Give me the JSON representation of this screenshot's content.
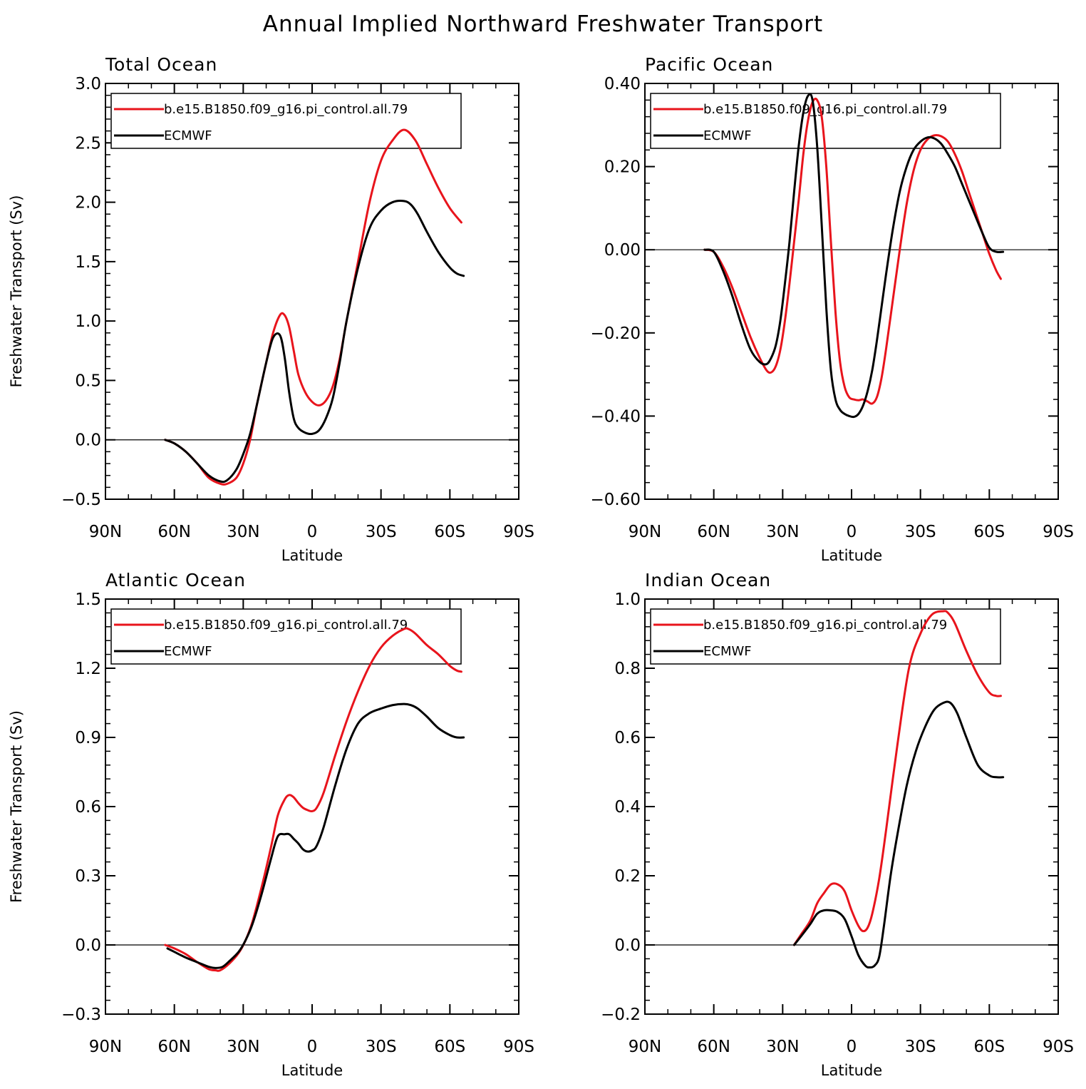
{
  "figure_title": "Annual Implied Northward Freshwater Transport",
  "colors": {
    "model": "#e8141c",
    "obs": "#000000"
  },
  "chart_data": [
    {
      "type": "line",
      "title": "Total Ocean",
      "xlabel": "Latitude",
      "ylabel": "Freshwater Transport (Sv)",
      "xlim": [
        90,
        -90
      ],
      "ylim": [
        -0.5,
        3.0
      ],
      "xticks": [
        90,
        60,
        30,
        0,
        -30,
        -60,
        -90
      ],
      "xtick_labels": [
        "90N",
        "60N",
        "30N",
        "0",
        "30S",
        "60S",
        "90S"
      ],
      "yticks": [
        -0.5,
        0.0,
        0.5,
        1.0,
        1.5,
        2.0,
        2.5,
        3.0
      ],
      "ytick_labels": [
        "−0.5",
        "0.0",
        "0.5",
        "1.0",
        "1.5",
        "2.0",
        "2.5",
        "3.0"
      ],
      "ytick_minor_step": 0.1,
      "zero_line": true,
      "series": [
        {
          "name": "b.e15.B1850.f09_g16.pi_control.all.79",
          "color": "#e8141c",
          "x": [
            64,
            60,
            55,
            50,
            45,
            40,
            37,
            33,
            30,
            27,
            24,
            20,
            17,
            14,
            12,
            10,
            8,
            6,
            3,
            0,
            -3,
            -6,
            -9,
            -12,
            -15,
            -20,
            -25,
            -30,
            -35,
            -40,
            -45,
            -50,
            -55,
            -60,
            -65
          ],
          "y": [
            0.0,
            -0.03,
            -0.1,
            -0.2,
            -0.32,
            -0.37,
            -0.37,
            -0.32,
            -0.2,
            0.0,
            0.3,
            0.65,
            0.9,
            1.05,
            1.05,
            0.95,
            0.75,
            0.55,
            0.4,
            0.32,
            0.29,
            0.33,
            0.45,
            0.68,
            1.0,
            1.5,
            2.0,
            2.35,
            2.52,
            2.61,
            2.52,
            2.32,
            2.12,
            1.95,
            1.83
          ]
        },
        {
          "name": "ECMWF",
          "color": "#000000",
          "x": [
            64,
            60,
            55,
            50,
            45,
            40,
            37,
            33,
            30,
            27,
            24,
            20,
            17,
            14,
            12,
            10,
            8,
            6,
            3,
            0,
            -3,
            -6,
            -9,
            -12,
            -15,
            -20,
            -25,
            -30,
            -35,
            -40,
            -43,
            -46,
            -50,
            -55,
            -60,
            -63,
            -66
          ],
          "y": [
            0.0,
            -0.03,
            -0.1,
            -0.2,
            -0.3,
            -0.35,
            -0.34,
            -0.25,
            -0.12,
            0.05,
            0.3,
            0.65,
            0.86,
            0.88,
            0.7,
            0.4,
            0.18,
            0.1,
            0.06,
            0.05,
            0.08,
            0.18,
            0.35,
            0.65,
            1.0,
            1.45,
            1.78,
            1.93,
            2.0,
            2.01,
            1.98,
            1.9,
            1.75,
            1.58,
            1.45,
            1.4,
            1.38
          ]
        }
      ]
    },
    {
      "type": "line",
      "title": "Pacific Ocean",
      "xlabel": "Latitude",
      "ylabel": "",
      "xlim": [
        90,
        -90
      ],
      "ylim": [
        -0.6,
        0.4
      ],
      "xticks": [
        90,
        60,
        30,
        0,
        -30,
        -60,
        -90
      ],
      "xtick_labels": [
        "90N",
        "60N",
        "30N",
        "0",
        "30S",
        "60S",
        "90S"
      ],
      "yticks": [
        -0.6,
        -0.4,
        -0.2,
        0.0,
        0.2,
        0.4
      ],
      "ytick_labels": [
        "−0.60",
        "−0.40",
        "−0.20",
        "0.00",
        "0.20",
        "0.40"
      ],
      "ytick_minor_step": 0.04,
      "zero_line": true,
      "series": [
        {
          "name": "b.e15.B1850.f09_g16.pi_control.all.79",
          "color": "#e8141c",
          "x": [
            64,
            60,
            56,
            52,
            48,
            44,
            40,
            37,
            35,
            33,
            31,
            29,
            27,
            25,
            23,
            21,
            19,
            17,
            15,
            13,
            11,
            9,
            7,
            5,
            3,
            1,
            -1,
            -3,
            -5,
            -7,
            -9,
            -11,
            -13,
            -15,
            -18,
            -21,
            -24,
            -27,
            -30,
            -33,
            -36,
            -39,
            -42,
            -45,
            -48,
            -51,
            -54,
            -57,
            -60,
            -63,
            -65
          ],
          "y": [
            0.0,
            -0.005,
            -0.04,
            -0.09,
            -0.15,
            -0.21,
            -0.26,
            -0.29,
            -0.295,
            -0.28,
            -0.24,
            -0.17,
            -0.08,
            0.02,
            0.12,
            0.23,
            0.31,
            0.355,
            0.36,
            0.32,
            0.2,
            0.02,
            -0.15,
            -0.27,
            -0.33,
            -0.355,
            -0.36,
            -0.362,
            -0.36,
            -0.365,
            -0.37,
            -0.355,
            -0.31,
            -0.24,
            -0.12,
            0.0,
            0.11,
            0.19,
            0.24,
            0.265,
            0.275,
            0.273,
            0.26,
            0.23,
            0.19,
            0.14,
            0.09,
            0.04,
            -0.01,
            -0.05,
            -0.07
          ]
        },
        {
          "name": "ECMWF",
          "color": "#000000",
          "x": [
            64,
            60,
            56,
            52,
            48,
            44,
            40,
            37,
            35,
            33,
            31,
            29,
            27,
            25,
            23,
            21,
            19,
            17,
            15,
            13,
            11,
            9,
            7,
            5,
            3,
            1,
            -1,
            -3,
            -5,
            -7,
            -9,
            -11,
            -13,
            -15,
            -18,
            -21,
            -24,
            -27,
            -30,
            -33,
            -36,
            -39,
            -42,
            -45,
            -48,
            -51,
            -54,
            -57,
            -60,
            -63,
            -66
          ],
          "y": [
            0.0,
            -0.005,
            -0.05,
            -0.11,
            -0.18,
            -0.24,
            -0.27,
            -0.275,
            -0.26,
            -0.23,
            -0.17,
            -0.08,
            0.02,
            0.14,
            0.25,
            0.33,
            0.37,
            0.36,
            0.25,
            0.06,
            -0.14,
            -0.29,
            -0.36,
            -0.385,
            -0.395,
            -0.4,
            -0.402,
            -0.395,
            -0.375,
            -0.34,
            -0.29,
            -0.22,
            -0.14,
            -0.06,
            0.05,
            0.14,
            0.2,
            0.24,
            0.26,
            0.27,
            0.268,
            0.255,
            0.23,
            0.2,
            0.16,
            0.12,
            0.08,
            0.04,
            0.005,
            -0.005,
            -0.005
          ]
        }
      ]
    },
    {
      "type": "line",
      "title": "Atlantic Ocean",
      "xlabel": "Latitude",
      "ylabel": "Freshwater Transport (Sv)",
      "xlim": [
        90,
        -90
      ],
      "ylim": [
        -0.3,
        1.5
      ],
      "xticks": [
        90,
        60,
        30,
        0,
        -30,
        -60,
        -90
      ],
      "xtick_labels": [
        "90N",
        "60N",
        "30N",
        "0",
        "30S",
        "60S",
        "90S"
      ],
      "yticks": [
        -0.3,
        0.0,
        0.3,
        0.6,
        0.9,
        1.2,
        1.5
      ],
      "ytick_labels": [
        "−0.3",
        "0.0",
        "0.3",
        "0.6",
        "0.9",
        "1.2",
        "1.5"
      ],
      "ytick_minor_step": 0.06,
      "zero_line": true,
      "series": [
        {
          "name": "b.e15.B1850.f09_g16.pi_control.all.79",
          "color": "#e8141c",
          "x": [
            64,
            60,
            55,
            50,
            45,
            42,
            40,
            36,
            32,
            29,
            26,
            22,
            18,
            15,
            12,
            10,
            8,
            6,
            4,
            2,
            0,
            -2,
            -5,
            -10,
            -15,
            -20,
            -25,
            -30,
            -35,
            -40,
            -42,
            -45,
            -50,
            -55,
            -60,
            -63,
            -65
          ],
          "y": [
            0.0,
            -0.015,
            -0.04,
            -0.075,
            -0.105,
            -0.11,
            -0.11,
            -0.08,
            -0.035,
            0.02,
            0.1,
            0.25,
            0.42,
            0.56,
            0.63,
            0.65,
            0.64,
            0.615,
            0.595,
            0.585,
            0.58,
            0.595,
            0.66,
            0.82,
            0.97,
            1.1,
            1.21,
            1.29,
            1.34,
            1.37,
            1.37,
            1.35,
            1.3,
            1.26,
            1.21,
            1.19,
            1.185
          ]
        },
        {
          "name": "ECMWF",
          "color": "#000000",
          "x": [
            63,
            60,
            55,
            50,
            45,
            42,
            39,
            36,
            32,
            29,
            26,
            22,
            18,
            15,
            12,
            10,
            8,
            6,
            4,
            2,
            0,
            -2,
            -5,
            -10,
            -15,
            -20,
            -25,
            -30,
            -35,
            -40,
            -43,
            -46,
            -50,
            -55,
            -60,
            -63,
            -66
          ],
          "y": [
            -0.015,
            -0.03,
            -0.055,
            -0.075,
            -0.095,
            -0.1,
            -0.095,
            -0.07,
            -0.03,
            0.02,
            0.09,
            0.22,
            0.37,
            0.47,
            0.48,
            0.48,
            0.46,
            0.44,
            0.415,
            0.405,
            0.41,
            0.43,
            0.51,
            0.69,
            0.85,
            0.96,
            1.005,
            1.025,
            1.04,
            1.045,
            1.04,
            1.025,
            0.99,
            0.94,
            0.91,
            0.9,
            0.9
          ]
        }
      ]
    },
    {
      "type": "line",
      "title": "Indian Ocean",
      "xlabel": "Latitude",
      "ylabel": "",
      "xlim": [
        90,
        -90
      ],
      "ylim": [
        -0.2,
        1.0
      ],
      "xticks": [
        90,
        60,
        30,
        0,
        -30,
        -60,
        -90
      ],
      "xtick_labels": [
        "90N",
        "60N",
        "30N",
        "0",
        "30S",
        "60S",
        "90S"
      ],
      "yticks": [
        -0.2,
        0.0,
        0.2,
        0.4,
        0.6,
        0.8,
        1.0
      ],
      "ytick_labels": [
        "−0.2",
        "0.0",
        "0.2",
        "0.4",
        "0.6",
        "0.8",
        "1.0"
      ],
      "ytick_minor_step": 0.04,
      "zero_line": true,
      "series": [
        {
          "name": "b.e15.B1850.f09_g16.pi_control.all.79",
          "color": "#e8141c",
          "x": [
            25,
            22,
            18,
            15,
            12,
            9,
            6,
            3,
            0,
            -3,
            -5,
            -7,
            -9,
            -12,
            -15,
            -20,
            -25,
            -30,
            -35,
            -40,
            -42,
            -45,
            -50,
            -55,
            -60,
            -63,
            -65
          ],
          "y": [
            0.0,
            0.03,
            0.07,
            0.12,
            0.15,
            0.175,
            0.175,
            0.155,
            0.1,
            0.055,
            0.04,
            0.05,
            0.09,
            0.19,
            0.33,
            0.58,
            0.8,
            0.9,
            0.955,
            0.965,
            0.96,
            0.93,
            0.85,
            0.78,
            0.73,
            0.72,
            0.72
          ]
        },
        {
          "name": "ECMWF",
          "color": "#000000",
          "x": [
            25,
            22,
            18,
            15,
            12,
            9,
            6,
            3,
            0,
            -3,
            -6,
            -8,
            -10,
            -12,
            -14,
            -17,
            -20,
            -24,
            -28,
            -32,
            -36,
            -40,
            -43,
            -46,
            -50,
            -55,
            -60,
            -63,
            -66
          ],
          "y": [
            0.0,
            0.025,
            0.06,
            0.09,
            0.1,
            0.1,
            0.095,
            0.075,
            0.025,
            -0.03,
            -0.06,
            -0.065,
            -0.06,
            -0.035,
            0.05,
            0.2,
            0.32,
            0.46,
            0.56,
            0.63,
            0.68,
            0.7,
            0.7,
            0.67,
            0.6,
            0.52,
            0.49,
            0.485,
            0.485
          ]
        }
      ]
    }
  ]
}
